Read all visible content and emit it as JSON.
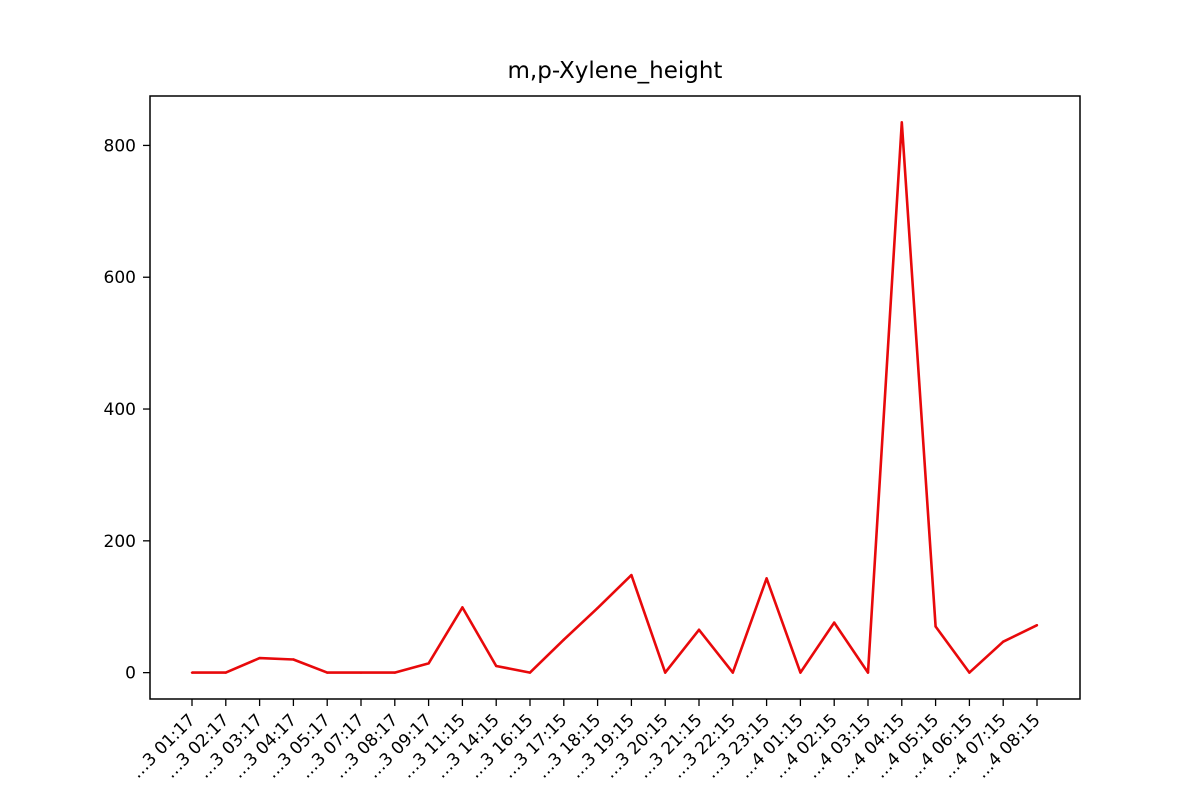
{
  "chart_data": {
    "type": "line",
    "title": "m,p-Xylene_height",
    "xlabel": "",
    "ylabel": "",
    "ylim": [
      -40,
      875
    ],
    "y_ticks": [
      0,
      200,
      400,
      600,
      800
    ],
    "y_tick_labels": [
      "0",
      "200",
      "400",
      "600",
      "800"
    ],
    "grid": false,
    "legend": "none",
    "series_color": "#e8090b",
    "x_tick_labels": [
      "…3 01:17",
      "…3 02:17",
      "…3 03:17",
      "…3 04:17",
      "…3 05:17",
      "…3 07:17",
      "…3 08:17",
      "…3 09:17",
      "…3 11:15",
      "…3 14:15",
      "…3 16:15",
      "…3 17:15",
      "…3 18:15",
      "…3 19:15",
      "…3 20:15",
      "…3 21:15",
      "…3 22:15",
      "…3 23:15",
      "…4 01:15",
      "…4 02:15",
      "…4 03:15",
      "…4 04:15",
      "…4 05:15",
      "…4 06:15",
      "…4 07:15",
      "…4 08:15"
    ],
    "series": [
      {
        "values": [
          0,
          0,
          22,
          20,
          0,
          0,
          0,
          14,
          99,
          10,
          0,
          50,
          98,
          148,
          0,
          65,
          0,
          143,
          0,
          76,
          0,
          835,
          70,
          0,
          47,
          72
        ]
      }
    ]
  }
}
